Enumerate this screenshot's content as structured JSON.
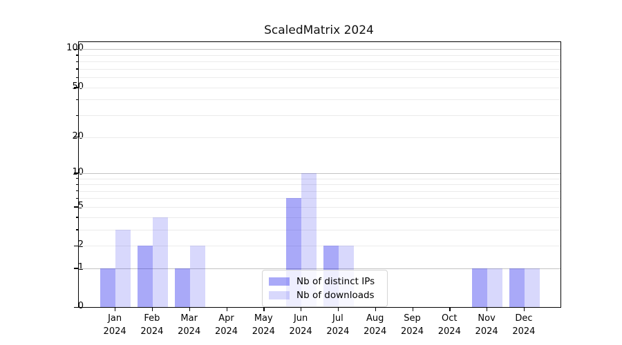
{
  "chart_data": {
    "type": "bar",
    "title": "ScaledMatrix 2024",
    "year_label": "2024",
    "categories": [
      "Jan",
      "Feb",
      "Mar",
      "Apr",
      "May",
      "Jun",
      "Jul",
      "Aug",
      "Sep",
      "Oct",
      "Nov",
      "Dec"
    ],
    "series": [
      {
        "name": "Nb of distinct IPs",
        "color": "rgba(10,10,235,0.35)",
        "values": [
          1,
          2,
          1,
          0,
          0,
          6,
          2,
          0,
          0,
          0,
          1,
          1
        ]
      },
      {
        "name": "Nb of downloads",
        "color": "rgba(10,10,235,0.16)",
        "values": [
          3,
          4,
          2,
          0,
          0,
          10,
          2,
          0,
          0,
          0,
          1,
          1
        ]
      }
    ],
    "yticks": [
      0,
      1,
      2,
      5,
      10,
      20,
      50,
      100
    ],
    "major_gridlines": [
      1,
      10,
      100
    ],
    "minor_gridlines": [
      3,
      4,
      6,
      7,
      8,
      9,
      30,
      40,
      60,
      70,
      80,
      90
    ],
    "scale": "log10(1+v)",
    "ylim": [
      0,
      114
    ],
    "xlabel": "",
    "ylabel": "",
    "grid": "both",
    "legend_position": "lower center",
    "colors": {
      "distinct_ips_bar": "rgba(10,10,235,0.35)",
      "downloads_bar": "rgba(10,10,235,0.16)",
      "major_grid": "#c3c3c3",
      "minor_grid": "#ebebeb",
      "axis": "#000000",
      "background": "#ffffff"
    }
  }
}
